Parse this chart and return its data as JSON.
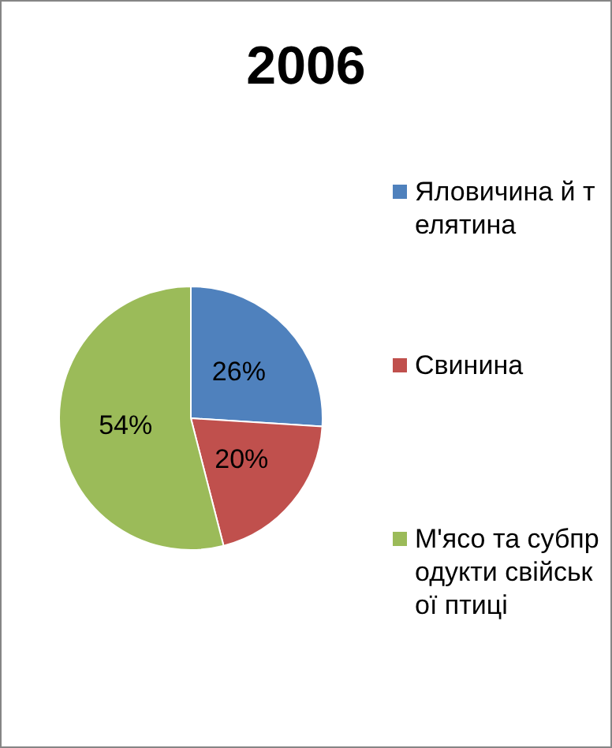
{
  "chart_data": {
    "type": "pie",
    "title": "2006",
    "categories": [
      "Яловичина й телятина",
      "Свинина",
      "М'ясо та субпродукти свійської птиці"
    ],
    "values": [
      26,
      20,
      54
    ],
    "colors": [
      "#4f81bd",
      "#c0504d",
      "#9bbb59"
    ],
    "value_labels": [
      "26%",
      "20%",
      "54%"
    ],
    "legend": "right"
  }
}
